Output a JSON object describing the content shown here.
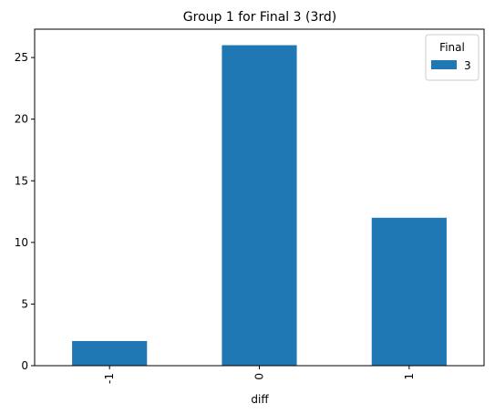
{
  "chart_data": {
    "type": "bar",
    "title": "Group 1 for Final 3 (3rd)",
    "xlabel": "diff",
    "ylabel": "",
    "categories": [
      "-1",
      "0",
      "1"
    ],
    "series": [
      {
        "name": "3",
        "values": [
          2,
          26,
          12
        ],
        "color": "#1f77b4"
      }
    ],
    "ylim": [
      0,
      27.3
    ],
    "yticks": [
      0,
      5,
      10,
      15,
      20,
      25
    ],
    "grid": false,
    "legend": {
      "title": "Final",
      "placement": "top-right"
    }
  }
}
